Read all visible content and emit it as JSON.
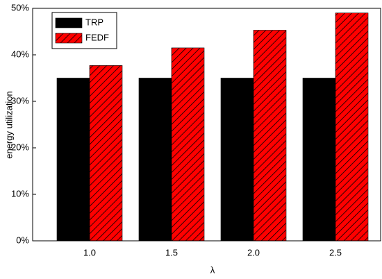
{
  "chart_data": {
    "type": "bar",
    "x_label": "λ",
    "y_label": "energy utilization",
    "categories": [
      "1.0",
      "1.5",
      "2.0",
      "2.5"
    ],
    "series": [
      {
        "name": "TRP",
        "color": "#000000",
        "pattern": "solid",
        "values": [
          35,
          35,
          35,
          35
        ]
      },
      {
        "name": "FEDF",
        "color": "#ff0000",
        "pattern": "hatch",
        "values": [
          37.7,
          41.5,
          45.3,
          49.0
        ]
      }
    ],
    "ylim": [
      0,
      50
    ],
    "yticks": [
      {
        "value": 0,
        "label": "0%"
      },
      {
        "value": 10,
        "label": "10%"
      },
      {
        "value": 20,
        "label": "20%"
      },
      {
        "value": 30,
        "label": "30%"
      },
      {
        "value": 40,
        "label": "40%"
      },
      {
        "value": 50,
        "label": "50%"
      }
    ],
    "legend": "upper left"
  }
}
